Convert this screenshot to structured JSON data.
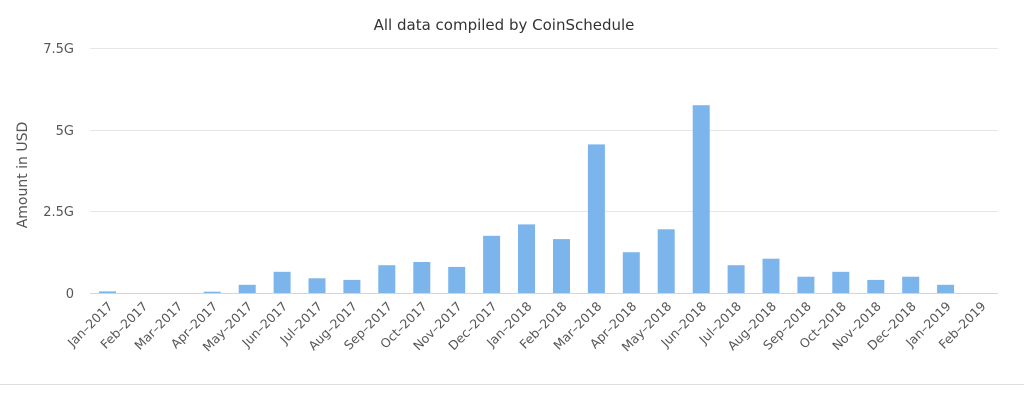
{
  "colors": {
    "bar": "#7cb5ec"
  },
  "chart_data": {
    "type": "bar",
    "title": "All data compiled by CoinSchedule",
    "ylabel": "Amount in USD",
    "xlabel": "",
    "ylim": [
      0,
      7500000000
    ],
    "yticks": [
      {
        "value": 0,
        "label": "0"
      },
      {
        "value": 2500000000,
        "label": "2.5G"
      },
      {
        "value": 5000000000,
        "label": "5G"
      },
      {
        "value": 7500000000,
        "label": "7.5G"
      }
    ],
    "grid": true,
    "categories": [
      "Jan–2017",
      "Feb–2017",
      "Mar–2017",
      "Apr–2017",
      "May–2017",
      "Jun–2017",
      "Jul–2017",
      "Aug–2017",
      "Sep–2017",
      "Oct–2017",
      "Nov–2017",
      "Dec–2017",
      "Jan–2018",
      "Feb–2018",
      "Mar–2018",
      "Apr–2018",
      "May–2018",
      "Jun–2018",
      "Jul–2018",
      "Aug–2018",
      "Sep–2018",
      "Oct–2018",
      "Nov–2018",
      "Dec–2018",
      "Jan–2019",
      "Feb–2019"
    ],
    "values": [
      50000000,
      0,
      0,
      40000000,
      250000000,
      650000000,
      450000000,
      400000000,
      850000000,
      950000000,
      800000000,
      1750000000,
      2100000000,
      1650000000,
      4550000000,
      1250000000,
      1950000000,
      5750000000,
      850000000,
      1050000000,
      500000000,
      650000000,
      400000000,
      500000000,
      250000000,
      0
    ]
  }
}
